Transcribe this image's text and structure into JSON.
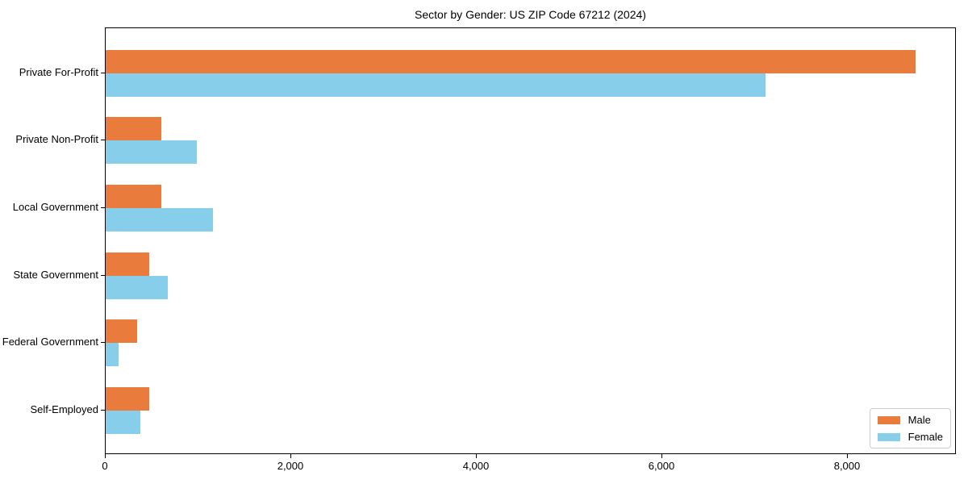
{
  "chart_data": {
    "type": "bar",
    "orientation": "horizontal",
    "title": "Sector by Gender: US ZIP Code 67212 (2024)",
    "categories": [
      "Private For-Profit",
      "Private Non-Profit",
      "Local Government",
      "State Government",
      "Federal Government",
      "Self-Employed"
    ],
    "series": [
      {
        "name": "Male",
        "color": "#e97c3c",
        "values": [
          8730,
          600,
          600,
          470,
          340,
          470
        ]
      },
      {
        "name": "Female",
        "color": "#87ceeb",
        "values": [
          7110,
          985,
          1155,
          670,
          140,
          375
        ]
      }
    ],
    "xlabel": "",
    "ylabel": "",
    "xlim": [
      0,
      9170
    ],
    "xticks": [
      {
        "value": 0,
        "label": "0"
      },
      {
        "value": 2000,
        "label": "2,000"
      },
      {
        "value": 4000,
        "label": "4,000"
      },
      {
        "value": 6000,
        "label": "6,000"
      },
      {
        "value": 8000,
        "label": "8,000"
      }
    ],
    "legend": {
      "position": "lower-right",
      "entries": [
        "Male",
        "Female"
      ]
    },
    "grid": false,
    "background_color": "#ffffff",
    "frame_color": "#000000"
  }
}
